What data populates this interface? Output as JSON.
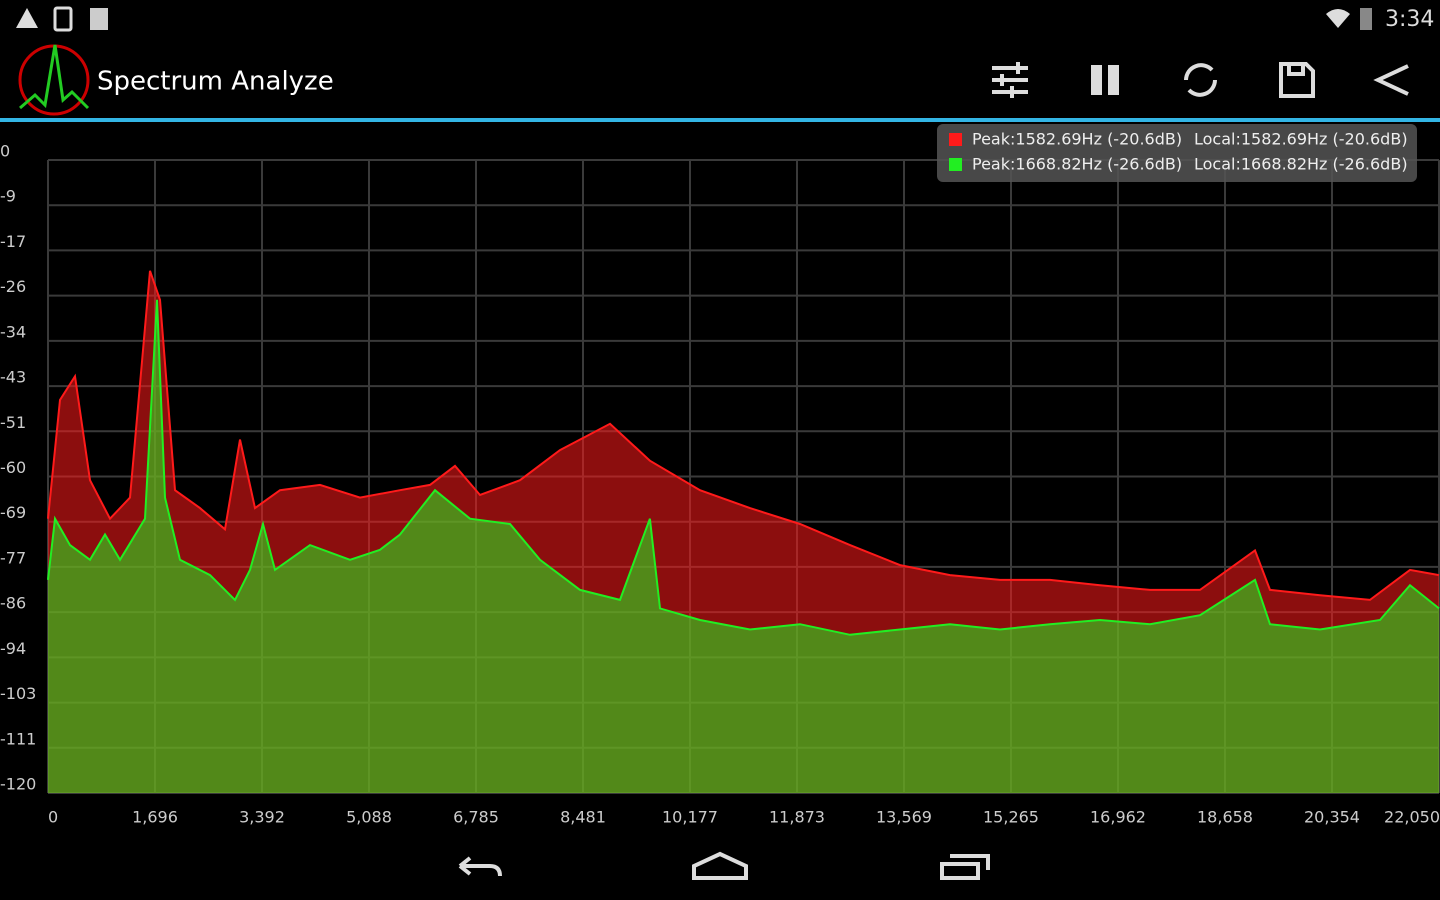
{
  "status_bar": {
    "time": "3:34"
  },
  "app_bar": {
    "title": "Spectrum Analyze"
  },
  "chart_data": {
    "type": "area",
    "xlim": [
      0,
      22050
    ],
    "xticks": [
      0,
      {
        "value": 1696.15,
        "label": "1,696"
      },
      {
        "value": 3392.31,
        "label": "3,392"
      },
      {
        "value": 5088.46,
        "label": "5,088"
      },
      {
        "value": 6784.62,
        "label": "6,785"
      },
      {
        "value": 8480.77,
        "label": "8,481"
      },
      {
        "value": 10176.92,
        "label": "10,177"
      },
      {
        "value": 11873.08,
        "label": "11,873"
      },
      {
        "value": 13569.23,
        "label": "13,569"
      },
      {
        "value": 15265.38,
        "label": "15,265"
      },
      {
        "value": 16961.54,
        "label": "16,962"
      },
      {
        "value": 18657.69,
        "label": "18,658"
      },
      {
        "value": 20353.85,
        "label": "20,354"
      },
      {
        "value": 22050,
        "label": "22,050"
      }
    ],
    "ylim": [
      -120,
      0
    ],
    "yticks": [
      0,
      {
        "value": -8.57,
        "label": "-9"
      },
      {
        "value": -17.14,
        "label": "-17"
      },
      {
        "value": -25.71,
        "label": "-26"
      },
      {
        "value": -34.29,
        "label": "-34"
      },
      {
        "value": -42.86,
        "label": "-43"
      },
      {
        "value": -51.43,
        "label": "-51"
      },
      {
        "value": -60,
        "label": "-60"
      },
      {
        "value": -68.57,
        "label": "-69"
      },
      {
        "value": -77.14,
        "label": "-77"
      },
      {
        "value": -85.71,
        "label": "-86"
      },
      {
        "value": -94.29,
        "label": "-94"
      },
      {
        "value": -102.86,
        "label": "-103"
      },
      {
        "value": -111.43,
        "label": "-111"
      },
      {
        "value": -120,
        "label": "-120"
      }
    ],
    "grid": true,
    "series": [
      {
        "color": "#ff1a1a",
        "x": [
          0,
          190,
          428,
          666,
          983,
          1300,
          1617,
          1775,
          2013,
          2410,
          2806,
          3044,
          3281,
          3678,
          4312,
          4946,
          5580,
          6055,
          6452,
          6848,
          7482,
          8116,
          8909,
          9542,
          10335,
          11128,
          11920,
          12713,
          13506,
          14298,
          15091,
          15884,
          16676,
          17469,
          18262,
          19133,
          19371,
          20164,
          20956,
          21590,
          22050
        ],
        "values": [
          -68,
          -45.5,
          -41,
          -60.7,
          -68,
          -64,
          -21,
          -26.5,
          -62.6,
          -66,
          -70,
          -53,
          -66,
          -62.6,
          -61.6,
          -64,
          -62.6,
          -61.6,
          -58,
          -63.5,
          -60.7,
          -55,
          -50,
          -57,
          -62.6,
          -66,
          -69,
          -73,
          -76.8,
          -78.7,
          -79.6,
          -79.6,
          -80.6,
          -81.5,
          -81.5,
          -74,
          -81.5,
          -82.5,
          -83.4,
          -77.7,
          -78.7
        ]
      },
      {
        "color": "#22ee22",
        "x": [
          0,
          111,
          349,
          666,
          904,
          1141,
          1538,
          1728,
          1855,
          2092,
          2568,
          2964,
          3202,
          3408,
          3598,
          4153,
          4787,
          5263,
          5580,
          6135,
          6690,
          7324,
          7799,
          8433,
          9067,
          9542,
          9701,
          10335,
          11128,
          11920,
          12713,
          13506,
          14298,
          15091,
          15884,
          16676,
          17469,
          18262,
          19133,
          19371,
          20164,
          21115,
          21590,
          22050
        ],
        "values": [
          -79.6,
          -68,
          -73,
          -75.8,
          -71,
          -75.8,
          -68,
          -26.5,
          -64,
          -75.8,
          -78.7,
          -83.4,
          -77.7,
          -69,
          -77.7,
          -73,
          -75.8,
          -73.9,
          -71,
          -62.6,
          -68,
          -69,
          -75.8,
          -81.5,
          -83.4,
          -68,
          -85,
          -87.2,
          -89,
          -88,
          -90,
          -89,
          -88,
          -89,
          -88,
          -87.2,
          -88,
          -86.3,
          -79.6,
          -88,
          -89,
          -87.2,
          -80.6,
          -85
        ]
      }
    ],
    "readouts": [
      {
        "peak": "Peak:1582.69Hz (-20.6dB)",
        "local": "Local:1582.69Hz (-20.6dB)"
      },
      {
        "peak": "Peak:1668.82Hz (-26.6dB)",
        "local": "Local:1668.82Hz (-26.6dB)"
      }
    ]
  }
}
